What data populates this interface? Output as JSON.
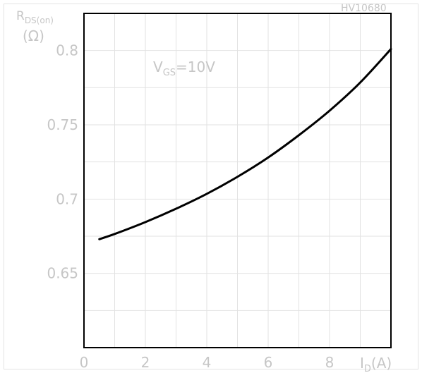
{
  "chart_data": {
    "type": "line",
    "code": "HV10680",
    "annotation": {
      "main": "V",
      "sub": "GS",
      "rest": "=10V"
    },
    "ylabel": {
      "main": "R",
      "sub": "DS(on)",
      "unit": "(Ω)"
    },
    "xlabel": {
      "main": "I",
      "sub": "D",
      "unit": "(A)"
    },
    "xlim": [
      0,
      10
    ],
    "ylim": [
      0.6,
      0.825
    ],
    "xticks": [
      0,
      2,
      4,
      6,
      8
    ],
    "yticks": [
      0.65,
      0.7,
      0.75,
      0.8
    ],
    "ytick_labels": [
      "0.65",
      "0.7",
      "0.75",
      "0.8"
    ],
    "grid": true,
    "series": [
      {
        "x": [
          0.5,
          1,
          2,
          3,
          4,
          5,
          6,
          7,
          8,
          9,
          10
        ],
        "values": [
          0.673,
          0.6765,
          0.6845,
          0.6935,
          0.7035,
          0.715,
          0.728,
          0.743,
          0.7595,
          0.7785,
          0.801
        ]
      }
    ]
  }
}
